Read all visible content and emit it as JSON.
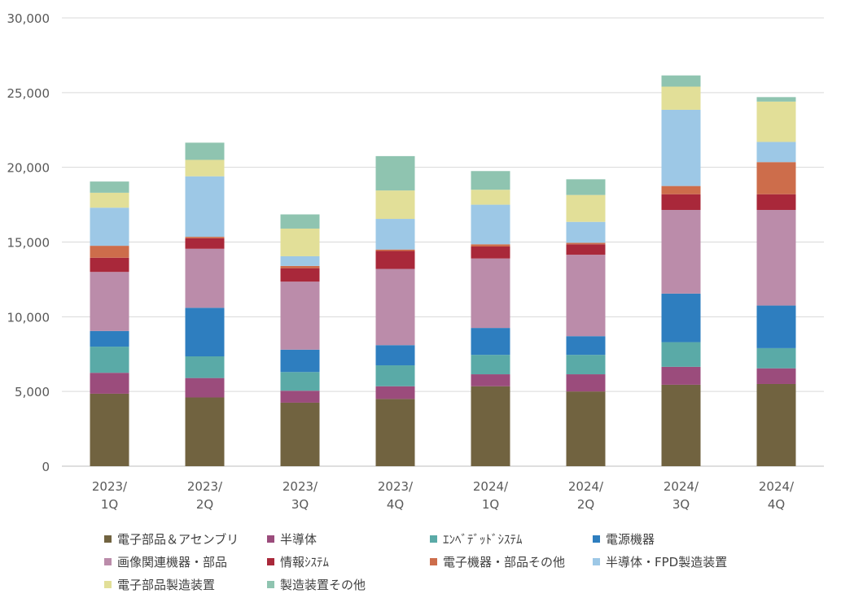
{
  "chart_data": {
    "type": "bar",
    "stacked": true,
    "categories": [
      [
        "2023/",
        "1Q"
      ],
      [
        "2023/",
        "2Q"
      ],
      [
        "2023/",
        "3Q"
      ],
      [
        "2023/",
        "4Q"
      ],
      [
        "2024/",
        "1Q"
      ],
      [
        "2024/",
        "2Q"
      ],
      [
        "2024/",
        "3Q"
      ],
      [
        "2024/",
        "4Q"
      ]
    ],
    "ylim": [
      0,
      30000
    ],
    "yticks": [
      "0",
      "5,000",
      "10,000",
      "15,000",
      "20,000",
      "25,000",
      "30,000"
    ],
    "ytick_values": [
      0,
      5000,
      10000,
      15000,
      20000,
      25000,
      30000
    ],
    "grid": true,
    "legend_position": "bottom",
    "series": [
      {
        "name": "電子部品＆アセンブリ",
        "color": "#716340",
        "values": [
          4850,
          4600,
          4250,
          4500,
          5350,
          5000,
          5450,
          5500
        ]
      },
      {
        "name": "半導体",
        "color": "#9b4c7c",
        "values": [
          1400,
          1300,
          800,
          850,
          800,
          1150,
          1200,
          1050
        ]
      },
      {
        "name": "ｴﾝﾍﾞﾃﾞｯﾄﾞｼｽﾃﾑ",
        "color": "#5aaaa7",
        "values": [
          1750,
          1450,
          1250,
          1400,
          1300,
          1300,
          1650,
          1350
        ]
      },
      {
        "name": "電源機器",
        "color": "#2e7ebf",
        "values": [
          1050,
          3250,
          1500,
          1350,
          1800,
          1250,
          3250,
          2850
        ]
      },
      {
        "name": "画像関連機器・部品",
        "color": "#bb8caa",
        "values": [
          3950,
          3950,
          4550,
          5100,
          4650,
          5450,
          5600,
          6400
        ]
      },
      {
        "name": "情報ｼｽﾃﾑ",
        "color": "#a9283a",
        "values": [
          950,
          700,
          900,
          1200,
          800,
          700,
          1050,
          1050
        ]
      },
      {
        "name": "電子機器・部品その他",
        "color": "#cd6d4b",
        "values": [
          800,
          100,
          150,
          100,
          150,
          100,
          550,
          2150
        ]
      },
      {
        "name": "半導体・FPD製造装置",
        "color": "#9dc8e6",
        "values": [
          2550,
          4050,
          650,
          2050,
          2650,
          1400,
          5100,
          1350
        ]
      },
      {
        "name": "電子部品製造装置",
        "color": "#e2df98",
        "values": [
          1000,
          1100,
          1850,
          1900,
          1000,
          1800,
          1550,
          2700
        ]
      },
      {
        "name": "製造装置その他",
        "color": "#8fc4b0",
        "values": [
          750,
          1150,
          950,
          2300,
          1250,
          1050,
          750,
          300
        ]
      }
    ]
  }
}
